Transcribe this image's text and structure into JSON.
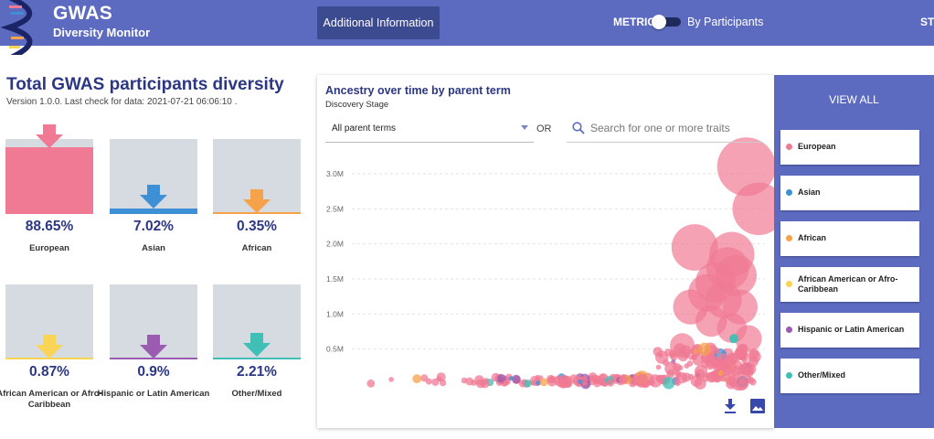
{
  "header": {
    "brand_title": "GWAS",
    "brand_subtitle": "Diversity Monitor",
    "info_button": "Additional Information",
    "metric_label": "METRIC",
    "metric_value": "By Participants",
    "truncated_label": "STA"
  },
  "summary": {
    "title": "Total GWAS participants diversity",
    "version": "Version 1.0.0. Last check for data: 2021-07-21 06:06:10 .",
    "tiles": [
      {
        "pct": "88.65%",
        "name": "European",
        "color": "#f07a94",
        "fill_fraction": 0.8865
      },
      {
        "pct": "7.02%",
        "name": "Asian",
        "color": "#3d8fd6",
        "fill_fraction": 0.0702
      },
      {
        "pct": "0.35%",
        "name": "African",
        "color": "#f5a24a",
        "fill_fraction": 0.0035
      },
      {
        "pct": "0.87%",
        "name": "African American or Afro-Caribbean",
        "color": "#f9d455",
        "fill_fraction": 0.0087
      },
      {
        "pct": "0.9%",
        "name": "Hispanic or Latin American",
        "color": "#9a5bb0",
        "fill_fraction": 0.009
      },
      {
        "pct": "2.21%",
        "name": "Other/Mixed",
        "color": "#3fbfb5",
        "fill_fraction": 0.0221
      }
    ]
  },
  "chart": {
    "title": "Ancestry over time by parent term",
    "subtitle": "Discovery Stage",
    "select_value": "All parent terms",
    "or_label": "OR",
    "search_placeholder": "Search for one or more traits"
  },
  "chart_data": {
    "type": "scatter",
    "title": "Ancestry over time by parent term",
    "xlabel": "",
    "ylabel": "",
    "y_ticks": [
      "0.5M",
      "1.0M",
      "1.5M",
      "2.0M",
      "2.5M",
      "3.0M"
    ],
    "ylim": [
      0,
      3300000
    ],
    "grid": true,
    "series": [
      {
        "name": "European",
        "color": "#f07a94",
        "points": [
          [
            0.955,
            3100000
          ],
          [
            0.985,
            2500000
          ],
          [
            0.83,
            1950000
          ],
          [
            0.92,
            1850000
          ],
          [
            0.91,
            1650000
          ],
          [
            0.93,
            1550000
          ],
          [
            0.88,
            1450000
          ],
          [
            0.86,
            1300000
          ],
          [
            0.9,
            1200000
          ],
          [
            0.94,
            1100000
          ],
          [
            0.82,
            1100000
          ],
          [
            0.87,
            900000
          ],
          [
            0.92,
            800000
          ],
          [
            0.96,
            650000
          ],
          [
            0.8,
            550000
          ]
        ]
      },
      {
        "name": "Other/Mixed",
        "color": "#3fbfb5",
        "points": [
          [
            0.925,
            650000
          ]
        ]
      }
    ]
  },
  "legend": {
    "view_all": "VIEW ALL",
    "items": [
      {
        "label": "European",
        "color": "#f07a94"
      },
      {
        "label": "Asian",
        "color": "#3d8fd6"
      },
      {
        "label": "African",
        "color": "#f5a24a"
      },
      {
        "label": "African American or Afro-Caribbean",
        "color": "#f9d455"
      },
      {
        "label": "Hispanic or Latin American",
        "color": "#9a5bb0"
      },
      {
        "label": "Other/Mixed",
        "color": "#3fbfb5"
      }
    ]
  }
}
